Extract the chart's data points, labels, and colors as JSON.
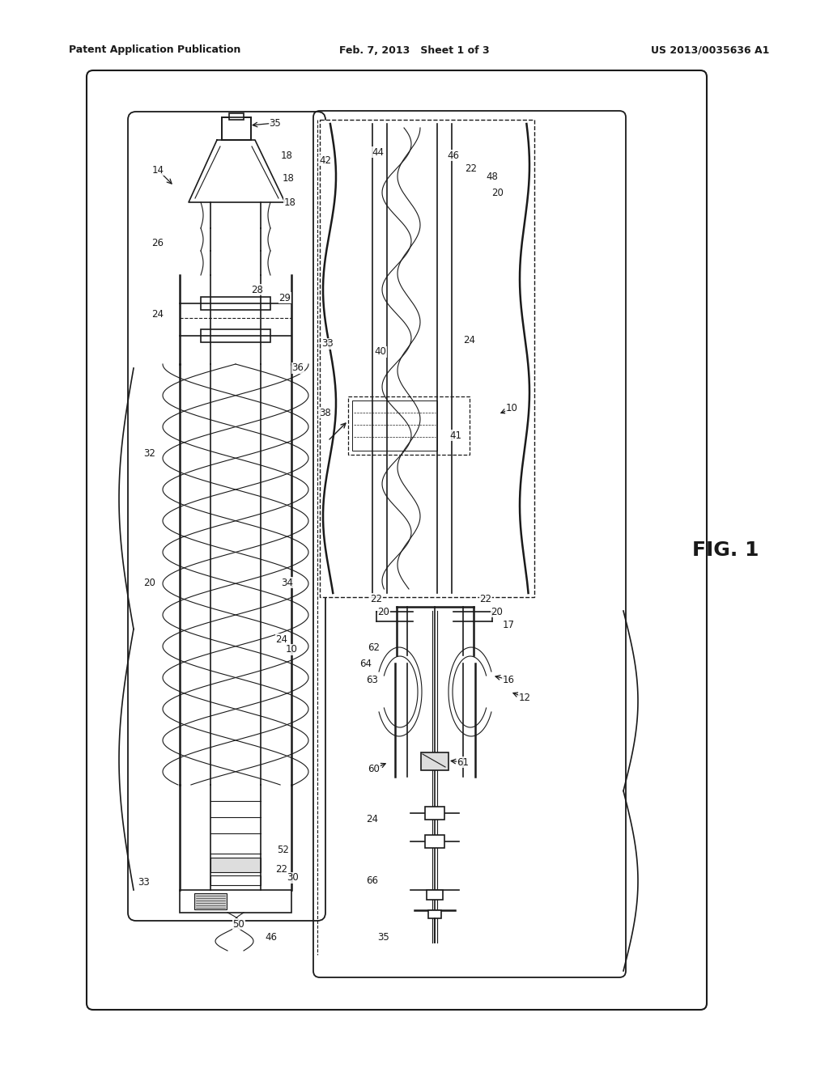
{
  "bg_color": "#ffffff",
  "line_color": "#1a1a1a",
  "header_left": "Patent Application Publication",
  "header_center": "Feb. 7, 2013   Sheet 1 of 3",
  "header_right": "US 2013/0035636 A1",
  "fig_label": "FIG. 1"
}
